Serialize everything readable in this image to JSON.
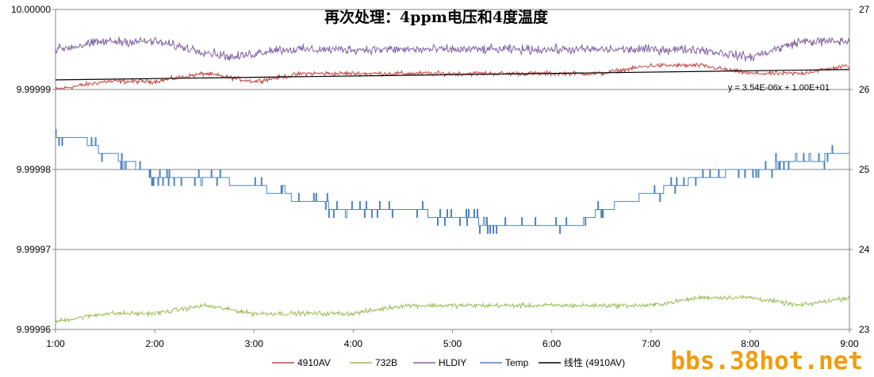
{
  "chart_data": {
    "type": "line",
    "title": "再次处理：4ppm电压和4度温度",
    "x_ticks": [
      "1:00",
      "2:00",
      "3:00",
      "4:00",
      "5:00",
      "6:00",
      "7:00",
      "8:00",
      "9:00"
    ],
    "x_range_hours": [
      1,
      9
    ],
    "y_left": {
      "ticks": [
        "10.00000",
        "9.99999",
        "9.99998",
        "9.99997",
        "9.99996"
      ],
      "range": [
        9.99996,
        10.0
      ],
      "grid": true
    },
    "y_right": {
      "ticks": [
        "27",
        "26",
        "25",
        "24",
        "23"
      ],
      "range": [
        23,
        27
      ]
    },
    "series": [
      {
        "name": "4910AV",
        "color": "#be4b48",
        "axis": "left",
        "noise": 2e-07,
        "x": [
          1.0,
          1.5,
          2.0,
          2.5,
          3.0,
          3.5,
          4.0,
          4.5,
          5.0,
          5.5,
          6.0,
          6.5,
          7.0,
          7.5,
          8.0,
          8.5,
          9.0
        ],
        "values": [
          9.99999,
          9.999991,
          9.999991,
          9.999992,
          9.999991,
          9.999992,
          9.999992,
          9.999992,
          9.999992,
          9.999992,
          9.999992,
          9.999992,
          9.999993,
          9.999993,
          9.999992,
          9.999992,
          9.999993
        ]
      },
      {
        "name": "732B",
        "color": "#9bbb59",
        "axis": "left",
        "noise": 2e-07,
        "x": [
          1.0,
          1.5,
          2.0,
          2.5,
          3.0,
          3.5,
          4.0,
          4.5,
          5.0,
          5.5,
          6.0,
          6.5,
          7.0,
          7.5,
          8.0,
          8.5,
          9.0
        ],
        "values": [
          9.999961,
          9.999962,
          9.999962,
          9.999963,
          9.999962,
          9.999962,
          9.999962,
          9.999963,
          9.999963,
          9.999963,
          9.999963,
          9.999963,
          9.999963,
          9.999964,
          9.999964,
          9.999963,
          9.999964
        ]
      },
      {
        "name": "HLDIY",
        "color": "#8064a2",
        "axis": "left",
        "noise": 4e-07,
        "x": [
          1.0,
          1.5,
          2.0,
          2.4,
          2.8,
          3.2,
          3.6,
          4.0,
          4.5,
          5.0,
          5.5,
          6.0,
          6.5,
          7.0,
          7.5,
          8.0,
          8.5,
          9.0
        ],
        "values": [
          9.999995,
          9.999996,
          9.999996,
          9.999995,
          9.999994,
          9.999995,
          9.999995,
          9.999995,
          9.999995,
          9.999995,
          9.999995,
          9.999995,
          9.999995,
          9.999995,
          9.999995,
          9.999994,
          9.999996,
          9.999996
        ]
      },
      {
        "name": "Temp",
        "color": "#4f81bd",
        "axis": "right",
        "step": 0.1,
        "x": [
          1.0,
          1.25,
          1.5,
          1.75,
          2.0,
          2.5,
          3.0,
          3.5,
          4.0,
          4.5,
          5.0,
          5.5,
          6.0,
          6.25,
          6.5,
          7.0,
          7.5,
          8.0,
          8.5,
          9.0
        ],
        "values": [
          25.4,
          25.4,
          25.2,
          25.1,
          24.9,
          24.9,
          24.8,
          24.6,
          24.5,
          24.5,
          24.4,
          24.3,
          24.3,
          24.3,
          24.5,
          24.7,
          24.9,
          25.0,
          25.1,
          25.2
        ]
      }
    ],
    "trendline": {
      "name": "线性 (4910AV)",
      "color": "#000000",
      "x_start": 1.0,
      "x_end": 9.0,
      "y_start": 9.9999912,
      "y_end": 9.9999925,
      "equation": "y = 3.54E-06x + 1.00E+01"
    },
    "legend_placement": "bottom",
    "legend_order": [
      "4910AV",
      "732B",
      "HLDIY",
      "Temp",
      "线性 (4910AV)"
    ]
  },
  "watermark": "bbs.38hot.net"
}
